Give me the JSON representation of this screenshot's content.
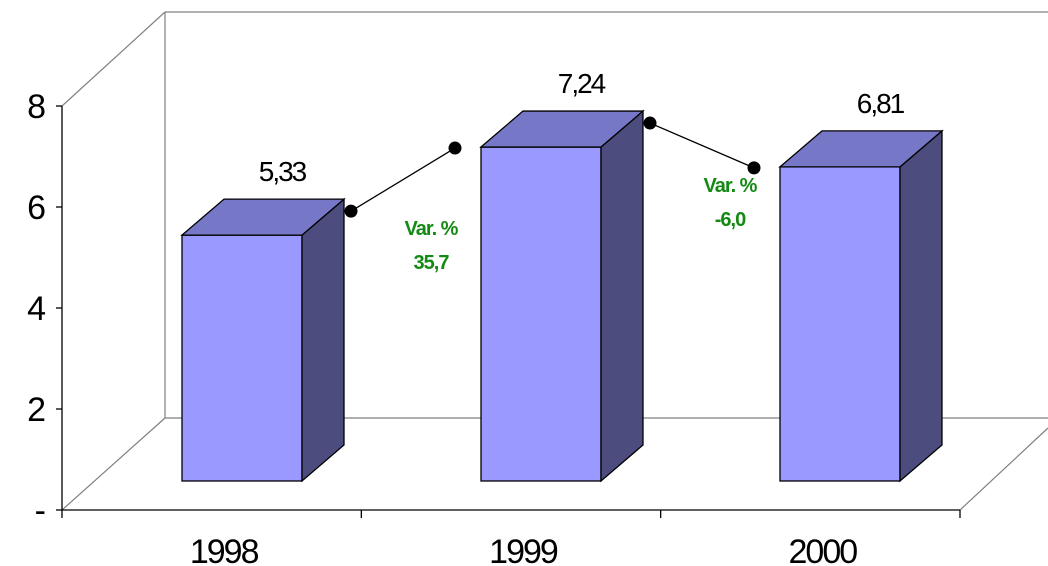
{
  "chart_data": {
    "type": "bar",
    "style": "3d-column",
    "categories": [
      "1998",
      "1999",
      "2000"
    ],
    "values": [
      5.33,
      7.24,
      6.81
    ],
    "value_labels": [
      "5,33",
      "7,24",
      "6,81"
    ],
    "y_ticks": [
      "-",
      "2",
      "4",
      "6",
      "8"
    ],
    "ylim": [
      0,
      8
    ],
    "grid": false,
    "colors": {
      "bar_front": "#9999ff",
      "bar_top": "#7777c8",
      "bar_side": "#4c4c7f",
      "annotation": "#148a14"
    },
    "annotations": [
      {
        "label": "Var. %",
        "value": "35,7"
      },
      {
        "label": "Var. %",
        "value": "-6,0"
      }
    ]
  }
}
